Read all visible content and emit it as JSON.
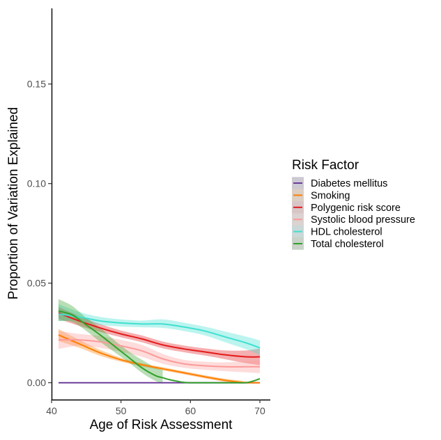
{
  "chart_data": {
    "type": "line",
    "xlabel": "Age of Risk Assessment",
    "ylabel": "Proportion of Variation Explained",
    "xlim": [
      40,
      71.5
    ],
    "ylim": [
      -0.0085,
      0.188
    ],
    "x_ticks": [
      40,
      50,
      60,
      70
    ],
    "x_tick_labels": [
      "40",
      "50",
      "60",
      "70"
    ],
    "y_ticks": [
      0.0,
      0.05,
      0.1,
      0.15
    ],
    "y_tick_labels": [
      "0.00",
      "0.05",
      "0.10",
      "0.15"
    ],
    "grid": false,
    "legend": {
      "title": "Risk Factor",
      "position": "right"
    },
    "series": [
      {
        "name": "Diabetes mellitus",
        "color": "#6a3d9a",
        "x": [
          41,
          70
        ],
        "y": [
          0.0,
          0.0
        ],
        "lo": [
          0.0,
          0.0
        ],
        "hi": [
          0.0,
          0.0
        ]
      },
      {
        "name": "Smoking",
        "color": "#ff7f00",
        "x": [
          41,
          44,
          47,
          50,
          53,
          56,
          59,
          62,
          65,
          67,
          68,
          70
        ],
        "y": [
          0.024,
          0.0195,
          0.015,
          0.0115,
          0.009,
          0.007,
          0.005,
          0.003,
          0.0012,
          0.0003,
          0.0,
          0.0
        ],
        "lo": [
          0.021,
          0.0175,
          0.0135,
          0.0105,
          0.0082,
          0.0062,
          0.0042,
          0.0022,
          0.0004,
          0.0,
          0.0,
          0.0
        ],
        "hi": [
          0.027,
          0.0215,
          0.0165,
          0.0125,
          0.0098,
          0.0078,
          0.0058,
          0.0038,
          0.002,
          0.0012,
          0.0006,
          0.0
        ]
      },
      {
        "name": "Polygenic risk score",
        "color": "#e31a1c",
        "x": [
          41,
          44,
          47,
          50,
          53,
          56,
          59,
          62,
          65,
          68,
          70
        ],
        "y": [
          0.035,
          0.031,
          0.0275,
          0.0245,
          0.022,
          0.019,
          0.017,
          0.0155,
          0.014,
          0.013,
          0.013
        ],
        "lo": [
          0.032,
          0.0285,
          0.0255,
          0.0228,
          0.0203,
          0.0173,
          0.0153,
          0.0137,
          0.0118,
          0.0098,
          0.0088
        ],
        "hi": [
          0.038,
          0.0335,
          0.0295,
          0.0262,
          0.0237,
          0.0207,
          0.0187,
          0.0173,
          0.0162,
          0.0162,
          0.0172
        ]
      },
      {
        "name": "Systolic blood pressure",
        "color": "#fb9a99",
        "x": [
          41,
          44,
          47,
          50,
          53,
          56,
          59,
          62,
          65,
          68,
          70
        ],
        "y": [
          0.0215,
          0.0215,
          0.0205,
          0.0185,
          0.016,
          0.012,
          0.0095,
          0.0085,
          0.008,
          0.008,
          0.008
        ],
        "lo": [
          0.017,
          0.0185,
          0.0175,
          0.0155,
          0.013,
          0.0095,
          0.0075,
          0.0065,
          0.0058,
          0.0052,
          0.0048
        ],
        "hi": [
          0.026,
          0.0245,
          0.0235,
          0.0215,
          0.019,
          0.0145,
          0.0115,
          0.0105,
          0.0102,
          0.0108,
          0.0112
        ]
      },
      {
        "name": "HDL cholesterol",
        "color": "#40e0d0",
        "x": [
          41,
          44,
          47,
          50,
          53,
          56,
          59,
          62,
          65,
          68,
          70
        ],
        "y": [
          0.0345,
          0.033,
          0.031,
          0.03,
          0.0295,
          0.0295,
          0.028,
          0.026,
          0.023,
          0.02,
          0.0175
        ],
        "lo": [
          0.031,
          0.031,
          0.029,
          0.0282,
          0.0278,
          0.0275,
          0.026,
          0.0238,
          0.0203,
          0.0168,
          0.0138
        ],
        "hi": [
          0.0395,
          0.0355,
          0.033,
          0.0318,
          0.0312,
          0.0318,
          0.0302,
          0.0282,
          0.0257,
          0.0232,
          0.0212
        ]
      },
      {
        "name": "Total cholesterol",
        "color": "#33a02c",
        "x": [
          41,
          43,
          45,
          47,
          49,
          51,
          53,
          55,
          56,
          57,
          58,
          59,
          60,
          62,
          64,
          66,
          68,
          69,
          70
        ],
        "y": [
          0.036,
          0.034,
          0.029,
          0.024,
          0.0185,
          0.013,
          0.0075,
          0.0035,
          0.0025,
          0.0015,
          0.0008,
          0.0002,
          0.0,
          0.0,
          0.0,
          0.0,
          0.0,
          0.0008,
          0.002
        ],
        "lo": [
          0.031,
          0.0305,
          0.026,
          0.0205,
          0.0155,
          0.0105,
          0.005,
          0.0008,
          0.0,
          0.0,
          0.0,
          0.0,
          0.0,
          0.0,
          0.0,
          0.0,
          0.0,
          0.0,
          0.0
        ],
        "hi": [
          0.042,
          0.0385,
          0.0325,
          0.0275,
          0.0215,
          0.016,
          0.0115,
          0.0075,
          0.0065,
          0.0,
          0.0,
          0.0,
          0.0,
          0.0,
          0.0,
          0.0,
          0.0,
          0.0,
          0.0
        ],
        "band_x_max": 56
      }
    ]
  }
}
